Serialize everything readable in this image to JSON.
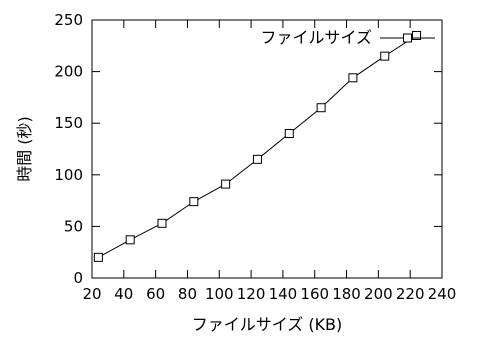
{
  "chart_data": {
    "type": "line",
    "xlabel": "ファイルサイズ (KB)",
    "ylabel": "時間 (秒)",
    "xlim": [
      20,
      240
    ],
    "ylim": [
      0,
      250
    ],
    "x_ticks": [
      20,
      40,
      60,
      80,
      100,
      120,
      140,
      160,
      180,
      200,
      220,
      240
    ],
    "y_ticks": [
      0,
      50,
      100,
      150,
      200,
      250
    ],
    "grid": false,
    "legend_position": "top-right",
    "series": [
      {
        "name": "ファイルサイズ",
        "marker": "square",
        "color": "#000000",
        "x": [
          24,
          44,
          64,
          84,
          104,
          124,
          144,
          164,
          184,
          204,
          224
        ],
        "y": [
          20,
          37,
          53,
          74,
          91,
          115,
          140,
          165,
          194,
          215,
          235
        ]
      }
    ]
  }
}
